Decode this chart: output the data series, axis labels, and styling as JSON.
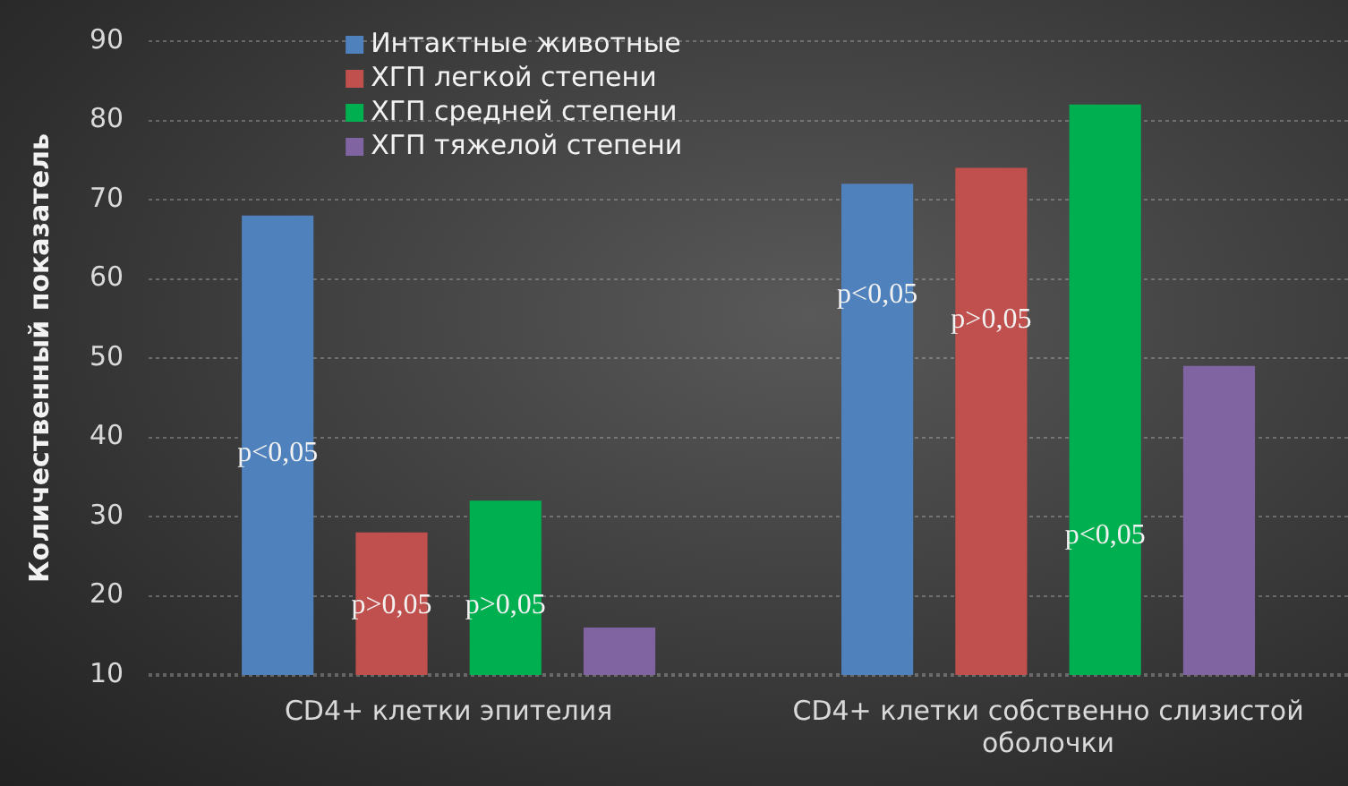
{
  "chart_data": {
    "type": "bar",
    "ylabel": "Количественный показатель",
    "categories": [
      "CD4+ клетки эпителия",
      "CD4+ клетки собственно слизистой оболочки"
    ],
    "series": [
      {
        "name": "Интактные животные",
        "color": "#4f81bd",
        "values": [
          68,
          72
        ]
      },
      {
        "name": "ХГП легкой степени",
        "color": "#c0504d",
        "values": [
          28,
          74
        ]
      },
      {
        "name": "ХГП средней степени",
        "color": "#00b050",
        "values": [
          32,
          82
        ]
      },
      {
        "name": "ХГП тяжелой степени",
        "color": "#8064a2",
        "values": [
          16,
          49
        ]
      }
    ],
    "ylim": [
      10,
      90
    ],
    "yticks": [
      10,
      20,
      30,
      40,
      50,
      60,
      70,
      80,
      90
    ],
    "grid": "y",
    "legend": "top left",
    "annotations": [
      "p<0,05",
      "p>0,05",
      "p>0,05",
      "p<0,05",
      "p>0,05",
      "p<0,05"
    ]
  }
}
